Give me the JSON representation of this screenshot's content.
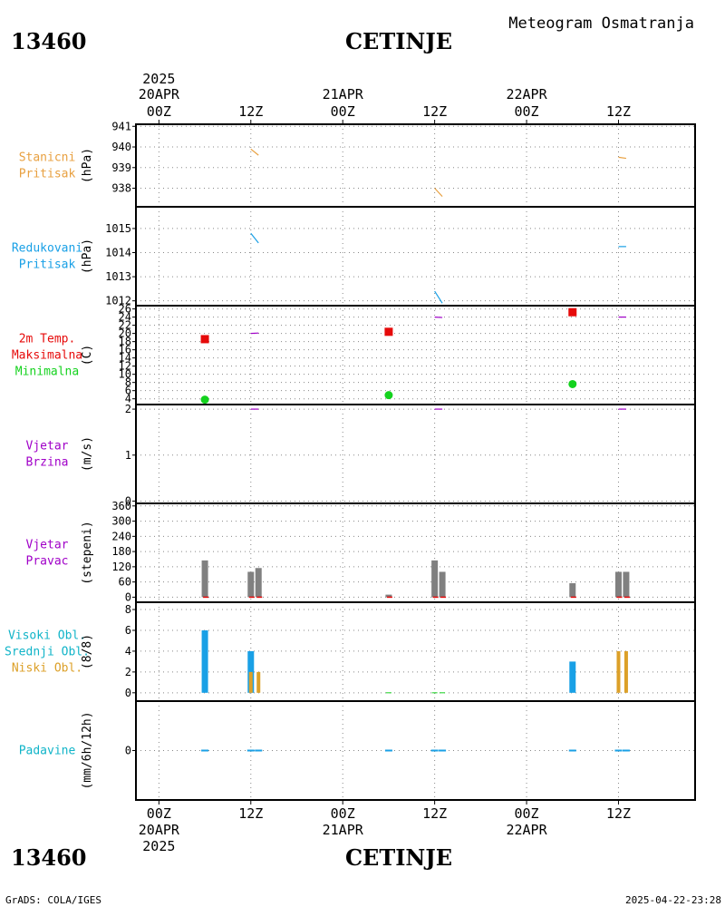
{
  "header": {
    "station_id": "13460",
    "station_name": "CETINJE",
    "title": "Meteogram Osmatranja"
  },
  "footer": {
    "credit": "GrADS: COLA/IGES",
    "timestamp": "2025-04-22-23:28"
  },
  "colors": {
    "orange": "#e8a040",
    "blue": "#19a0e6",
    "red": "#e60a0a",
    "green": "#14d21e",
    "purple": "#a000c8",
    "gray": "#808080",
    "gold": "#dca028",
    "cyan": "#10b4c8"
  },
  "time_axis": {
    "year": "2025",
    "dates": [
      {
        "label": "20APR",
        "t": 0
      },
      {
        "label": "21APR",
        "t": 24
      },
      {
        "label": "22APR",
        "t": 48
      }
    ],
    "hours": [
      {
        "label": "00Z",
        "t": 0
      },
      {
        "label": "12Z",
        "t": 12
      },
      {
        "label": "00Z",
        "t": 24
      },
      {
        "label": "12Z",
        "t": 36
      },
      {
        "label": "00Z",
        "t": 48
      },
      {
        "label": "12Z",
        "t": 60
      }
    ],
    "range_hours": [
      -3,
      70
    ]
  },
  "chart_data": [
    {
      "panel": "pressure",
      "type": "line",
      "labels": [
        "Stanicni",
        "Pritisak"
      ],
      "label_color": "orange",
      "unit": "(hPa)",
      "ylim": [
        937.1,
        941.1
      ],
      "ticks": [
        938,
        939,
        940,
        941
      ],
      "segments": [
        [
          [
            12,
            939.9
          ],
          [
            13,
            939.6
          ]
        ],
        [
          [
            36,
            938.0
          ],
          [
            37,
            937.6
          ]
        ],
        [
          [
            60,
            939.5
          ],
          [
            61,
            939.45
          ]
        ]
      ],
      "color": "orange"
    },
    {
      "panel": "reduced-pressure",
      "type": "line",
      "labels": [
        "Redukovani",
        "Pritisak"
      ],
      "label_color": "blue",
      "unit": "(hPa)",
      "ylim": [
        1011.8,
        1015.9
      ],
      "ticks": [
        1012,
        1013,
        1014,
        1015
      ],
      "segments": [
        [
          [
            12,
            1014.8
          ],
          [
            13,
            1014.4
          ]
        ],
        [
          [
            36,
            1012.4
          ],
          [
            37,
            1011.9
          ]
        ],
        [
          [
            60,
            1014.25
          ],
          [
            61,
            1014.25
          ]
        ]
      ],
      "color": "blue"
    },
    {
      "panel": "temperature",
      "type": "scatter",
      "labels": [
        "2m Temp.",
        "Maksimalna",
        "Minimalna"
      ],
      "label_colors": [
        "red",
        "red",
        "green"
      ],
      "unit": "(C)",
      "ylim": [
        2.6,
        26.8
      ],
      "ticks": [
        4,
        6,
        8,
        10,
        12,
        14,
        16,
        18,
        20,
        22,
        24,
        26
      ],
      "series": [
        {
          "name": "Maksimalna",
          "color": "red",
          "marker": "square",
          "points": [
            [
              6,
              18.6
            ],
            [
              30,
              20.4
            ],
            [
              54,
              25.2
            ]
          ]
        },
        {
          "name": "Minimalna",
          "color": "green",
          "marker": "circle",
          "points": [
            [
              6,
              3.8
            ],
            [
              30,
              4.9
            ],
            [
              54,
              7.6
            ]
          ]
        }
      ],
      "segments": [
        [
          [
            12,
            20.0
          ],
          [
            13,
            20.1
          ]
        ],
        [
          [
            36,
            24.0
          ],
          [
            37,
            23.9
          ]
        ],
        [
          [
            60,
            24.0
          ],
          [
            61,
            24.0
          ]
        ]
      ],
      "segment_color": "purple"
    },
    {
      "panel": "wind-speed",
      "type": "line",
      "labels": [
        "Vjetar",
        "Brzina"
      ],
      "label_color": "purple",
      "unit": "(m/s)",
      "ylim": [
        -0.05,
        2.1
      ],
      "ticks": [
        0,
        1,
        2
      ],
      "segments": [
        [
          [
            12,
            2.0
          ],
          [
            13,
            2.0
          ]
        ],
        [
          [
            36,
            2.0
          ],
          [
            37,
            2.0
          ]
        ],
        [
          [
            60,
            2.0
          ],
          [
            61,
            2.0
          ]
        ]
      ],
      "color": "purple"
    },
    {
      "panel": "wind-direction",
      "type": "bar",
      "labels": [
        "Vjetar",
        "Pravac"
      ],
      "label_color": "purple",
      "unit": "(stepeni)",
      "ylim": [
        -20,
        370
      ],
      "ticks": [
        0,
        60,
        120,
        180,
        240,
        300,
        360
      ],
      "bars": [
        {
          "t": 6,
          "value": 145
        },
        {
          "t": 12,
          "value": 100
        },
        {
          "t": 13,
          "value": 115
        },
        {
          "t": 30,
          "value": 10
        },
        {
          "t": 36,
          "value": 145
        },
        {
          "t": 37,
          "value": 100
        },
        {
          "t": 54,
          "value": 55
        },
        {
          "t": 60,
          "value": 100
        },
        {
          "t": 61,
          "value": 100
        }
      ],
      "color": "gray"
    },
    {
      "panel": "cloud-cover",
      "type": "bar",
      "labels": [
        "Visoki Obl.",
        "Srednji Obl.",
        "Niski Obl."
      ],
      "label_colors": [
        "cyan",
        "cyan",
        "gold"
      ],
      "unit": "(8/8)",
      "ylim": [
        -0.8,
        8.7
      ],
      "ticks": [
        0,
        2,
        4,
        6,
        8
      ],
      "series": [
        {
          "name": "Visoki Obl.",
          "color": "blue",
          "bars": [
            {
              "t": 6,
              "value": 6
            },
            {
              "t": 12,
              "value": 4
            },
            {
              "t": 54,
              "value": 3
            }
          ]
        },
        {
          "name": "Niski Obl.",
          "color": "gold",
          "bars": [
            {
              "t": 12,
              "value": 2
            },
            {
              "t": 13,
              "value": 2
            },
            {
              "t": 60,
              "value": 4
            },
            {
              "t": 61,
              "value": 4
            }
          ]
        }
      ]
    },
    {
      "panel": "precipitation",
      "type": "bar",
      "labels": [
        "Padavine"
      ],
      "label_color": "cyan",
      "unit": "(mm/6h/12h)",
      "ylim": [
        -5,
        5
      ],
      "ticks": [
        0
      ],
      "bars": [
        {
          "t": 6,
          "value": 0
        },
        {
          "t": 12,
          "value": 0
        },
        {
          "t": 13,
          "value": 0
        },
        {
          "t": 30,
          "value": 0
        },
        {
          "t": 36,
          "value": 0
        },
        {
          "t": 37,
          "value": 0
        },
        {
          "t": 54,
          "value": 0
        },
        {
          "t": 60,
          "value": 0
        },
        {
          "t": 61,
          "value": 0
        }
      ],
      "color": "blue"
    }
  ]
}
